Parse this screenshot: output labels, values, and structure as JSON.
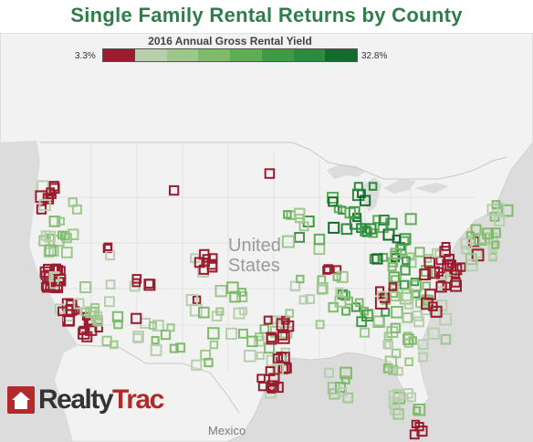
{
  "title": "Single Family Rental Returns by County",
  "legend": {
    "title": "2016 Annual Gross Rental Yield",
    "min_label": "3.3%",
    "max_label": "32.8%",
    "colors": [
      "#9b1c2e",
      "#b7cfad",
      "#9cc98b",
      "#7fbb6b",
      "#5fae55",
      "#3f9a45",
      "#2a8a3d",
      "#156b2e"
    ]
  },
  "map_labels": {
    "country_line1": "United",
    "country_line2": "States",
    "neighbor": "Mexico"
  },
  "logo": {
    "brand_part1": "Realty",
    "brand_part2": "Trac",
    "icon": "house-icon"
  },
  "colors": {
    "land": "#f2f2f2",
    "water": "#dcdcdc",
    "border": "#cfcfcf",
    "low_yield": "#9b1c2e",
    "high_yield": "#2a8a3d"
  }
}
